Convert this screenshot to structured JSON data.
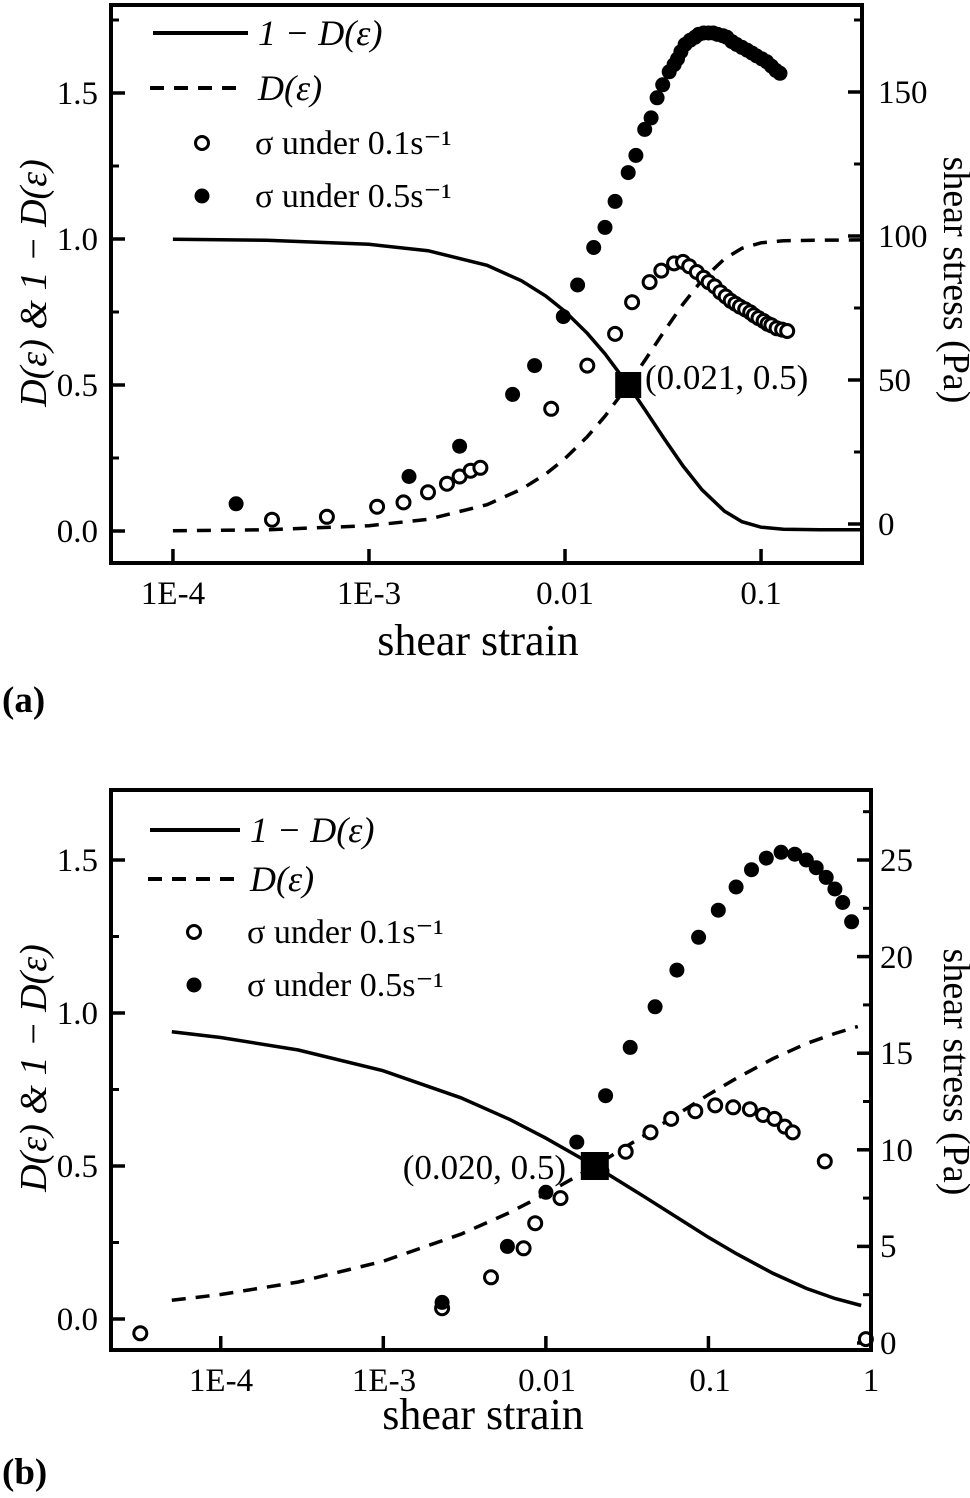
{
  "figure": {
    "panel_a_label": "(a)",
    "panel_b_label": "(b)",
    "background": "#ffffff",
    "ink": "#000000"
  },
  "chart_data": [
    {
      "id": "a",
      "type": "line+scatter",
      "x_axis": {
        "label": "shear strain",
        "scale": "log",
        "xlim": [
          4.8e-05,
          0.33
        ],
        "ticks": [
          {
            "v": 0.0001,
            "label": "1E-4"
          },
          {
            "v": 0.001,
            "label": "1E-3"
          },
          {
            "v": 0.01,
            "label": "0.01"
          },
          {
            "v": 0.1,
            "label": "0.1"
          }
        ],
        "minor_ticks": []
      },
      "left_axis": {
        "label": "D(ε) & 1 − D(ε)",
        "ylim": [
          -0.11,
          1.8
        ],
        "ticks": [
          {
            "v": 0.0,
            "label": "0.0"
          },
          {
            "v": 0.5,
            "label": "0.5"
          },
          {
            "v": 1.0,
            "label": "1.0"
          },
          {
            "v": 1.5,
            "label": "1.5"
          }
        ],
        "minor_ticks": [
          0.25,
          0.75,
          1.25,
          1.75
        ]
      },
      "right_axis": {
        "label": "shear stress (Pa)",
        "ylim": [
          -13,
          180
        ],
        "ticks": [
          {
            "v": 0,
            "label": "0"
          },
          {
            "v": 50,
            "label": "50"
          },
          {
            "v": 100,
            "label": "100"
          },
          {
            "v": 150,
            "label": "150"
          }
        ],
        "minor_ticks": [
          25,
          75,
          125,
          175
        ]
      },
      "legend": [
        {
          "marker": "solid-line",
          "label": "1 − D(ε)"
        },
        {
          "marker": "dashed-line",
          "label": "D(ε)"
        },
        {
          "marker": "open-circle",
          "label": "σ  under  0.1s⁻¹"
        },
        {
          "marker": "filled-circle",
          "label": "σ  under  0.5s⁻¹"
        }
      ],
      "annotation": {
        "text": "(0.021, 0.5)",
        "x": 0.021,
        "y": 0.5
      },
      "series": {
        "one_minus_D": {
          "name": "1 − D(ε)",
          "axis": "left",
          "style": "solid",
          "points": [
            [
              0.0001,
              0.999
            ],
            [
              0.0003,
              0.996
            ],
            [
              0.001,
              0.982
            ],
            [
              0.002,
              0.96
            ],
            [
              0.004,
              0.91
            ],
            [
              0.006,
              0.857
            ],
            [
              0.008,
              0.804
            ],
            [
              0.01,
              0.752
            ],
            [
              0.013,
              0.677
            ],
            [
              0.016,
              0.607
            ],
            [
              0.021,
              0.5
            ],
            [
              0.026,
              0.408
            ],
            [
              0.032,
              0.317
            ],
            [
              0.04,
              0.223
            ],
            [
              0.05,
              0.141
            ],
            [
              0.065,
              0.068
            ],
            [
              0.08,
              0.032
            ],
            [
              0.1,
              0.013
            ],
            [
              0.13,
              0.006
            ],
            [
              0.2,
              0.004
            ],
            [
              0.327,
              0.004
            ]
          ]
        },
        "D": {
          "name": "D(ε)",
          "axis": "left",
          "style": "dashed",
          "points": [
            [
              0.0001,
              0.001
            ],
            [
              0.0003,
              0.004
            ],
            [
              0.001,
              0.018
            ],
            [
              0.002,
              0.04
            ],
            [
              0.004,
              0.09
            ],
            [
              0.006,
              0.143
            ],
            [
              0.008,
              0.196
            ],
            [
              0.01,
              0.248
            ],
            [
              0.013,
              0.323
            ],
            [
              0.016,
              0.393
            ],
            [
              0.021,
              0.5
            ],
            [
              0.026,
              0.592
            ],
            [
              0.032,
              0.683
            ],
            [
              0.04,
              0.777
            ],
            [
              0.05,
              0.859
            ],
            [
              0.065,
              0.932
            ],
            [
              0.08,
              0.968
            ],
            [
              0.1,
              0.987
            ],
            [
              0.13,
              0.994
            ],
            [
              0.2,
              0.996
            ],
            [
              0.327,
              0.997
            ]
          ]
        },
        "sigma_0p1": {
          "name": "σ under 0.1s⁻¹",
          "axis": "right",
          "marker": "open",
          "points": [
            [
              0.00032,
              1.5
            ],
            [
              0.00061,
              2.5
            ],
            [
              0.0011,
              6
            ],
            [
              0.0015,
              7.5
            ],
            [
              0.002,
              11
            ],
            [
              0.0025,
              14
            ],
            [
              0.0029,
              16.5
            ],
            [
              0.0033,
              18.5
            ],
            [
              0.0037,
              19.5
            ],
            [
              0.0085,
              40
            ],
            [
              0.013,
              55
            ],
            [
              0.018,
              66
            ],
            [
              0.022,
              77
            ],
            [
              0.027,
              84
            ],
            [
              0.031,
              88
            ],
            [
              0.036,
              90.5
            ],
            [
              0.04,
              91
            ],
            [
              0.043,
              89.5
            ],
            [
              0.047,
              87.5
            ],
            [
              0.051,
              85.5
            ],
            [
              0.054,
              84
            ],
            [
              0.058,
              82.5
            ],
            [
              0.062,
              80.5
            ],
            [
              0.066,
              79
            ],
            [
              0.07,
              77.5
            ],
            [
              0.074,
              76.5
            ],
            [
              0.078,
              75.5
            ],
            [
              0.083,
              74.5
            ],
            [
              0.088,
              73.5
            ],
            [
              0.092,
              72.5
            ],
            [
              0.097,
              71.5
            ],
            [
              0.103,
              70.5
            ],
            [
              0.108,
              69.5
            ],
            [
              0.113,
              69
            ],
            [
              0.12,
              68
            ],
            [
              0.128,
              67.5
            ],
            [
              0.136,
              67
            ]
          ]
        },
        "sigma_0p5": {
          "name": "σ under 0.5s⁻¹",
          "axis": "right",
          "marker": "filled",
          "points": [
            [
              0.00021,
              7
            ],
            [
              0.0016,
              16.5
            ],
            [
              0.0029,
              27
            ],
            [
              0.0054,
              45
            ],
            [
              0.007,
              55
            ],
            [
              0.0098,
              72
            ],
            [
              0.0116,
              83
            ],
            [
              0.014,
              96
            ],
            [
              0.016,
              103
            ],
            [
              0.018,
              112
            ],
            [
              0.021,
              122
            ],
            [
              0.023,
              128
            ],
            [
              0.0255,
              137
            ],
            [
              0.0275,
              141
            ],
            [
              0.0295,
              148
            ],
            [
              0.0315,
              152.5
            ],
            [
              0.034,
              157
            ],
            [
              0.036,
              159.5
            ],
            [
              0.0375,
              161.5
            ],
            [
              0.039,
              164
            ],
            [
              0.041,
              166.5
            ],
            [
              0.0435,
              168
            ],
            [
              0.046,
              169
            ],
            [
              0.048,
              170
            ],
            [
              0.051,
              170.5
            ],
            [
              0.054,
              170.5
            ],
            [
              0.057,
              170.5
            ],
            [
              0.06,
              170
            ],
            [
              0.064,
              169.5
            ],
            [
              0.067,
              169
            ],
            [
              0.071,
              167.5
            ],
            [
              0.075,
              166.5
            ],
            [
              0.08,
              165.5
            ],
            [
              0.085,
              164.5
            ],
            [
              0.09,
              163.5
            ],
            [
              0.095,
              162.5
            ],
            [
              0.101,
              161.5
            ],
            [
              0.107,
              160.5
            ],
            [
              0.113,
              159
            ],
            [
              0.119,
              157.5
            ],
            [
              0.125,
              156.5
            ]
          ]
        },
        "intersection": {
          "name": "(0.021, 0.5)",
          "axis": "left",
          "marker": "square",
          "points": [
            [
              0.021,
              0.5
            ]
          ]
        }
      }
    },
    {
      "id": "b",
      "type": "line+scatter",
      "x_axis": {
        "label": "shear strain",
        "scale": "log",
        "xlim": [
          2.1e-05,
          1.0
        ],
        "ticks": [
          {
            "v": 0.0001,
            "label": "1E-4"
          },
          {
            "v": 0.001,
            "label": "1E-3"
          },
          {
            "v": 0.01,
            "label": "0.01"
          },
          {
            "v": 0.1,
            "label": "0.1"
          },
          {
            "v": 1,
            "label": "1"
          }
        ],
        "minor_ticks": []
      },
      "left_axis": {
        "label": "D(ε) & 1 − D(ε)",
        "ylim": [
          -0.1,
          1.73
        ],
        "ticks": [
          {
            "v": 0.0,
            "label": "0.0"
          },
          {
            "v": 0.5,
            "label": "0.5"
          },
          {
            "v": 1.0,
            "label": "1.0"
          },
          {
            "v": 1.5,
            "label": "1.5"
          }
        ],
        "minor_ticks": [
          0.25,
          0.75,
          1.25
        ]
      },
      "right_axis": {
        "label": "shear stress (Pa)",
        "ylim": [
          -0.4,
          28.6
        ],
        "ticks": [
          {
            "v": 0,
            "label": "0"
          },
          {
            "v": 5,
            "label": "5"
          },
          {
            "v": 10,
            "label": "10"
          },
          {
            "v": 15,
            "label": "15"
          },
          {
            "v": 20,
            "label": "20"
          },
          {
            "v": 25,
            "label": "25"
          }
        ],
        "minor_ticks": [
          2.5,
          7.5,
          12.5,
          17.5,
          22.5,
          27.5
        ]
      },
      "legend": [
        {
          "marker": "solid-line",
          "label": "1 − D(ε)"
        },
        {
          "marker": "dashed-line",
          "label": "D(ε)"
        },
        {
          "marker": "open-circle",
          "label": "σ  under  0.1s⁻¹"
        },
        {
          "marker": "filled-circle",
          "label": "σ  under  0.5s⁻¹"
        }
      ],
      "annotation": {
        "text": "(0.020, 0.5)",
        "x": 0.02,
        "y": 0.5
      },
      "series": {
        "one_minus_D": {
          "name": "1 − D(ε)",
          "axis": "left",
          "style": "solid",
          "points": [
            [
              5e-05,
              0.939
            ],
            [
              0.0001,
              0.92
            ],
            [
              0.0003,
              0.879
            ],
            [
              0.001,
              0.811
            ],
            [
              0.003,
              0.723
            ],
            [
              0.006,
              0.652
            ],
            [
              0.01,
              0.591
            ],
            [
              0.02,
              0.5
            ],
            [
              0.04,
              0.401
            ],
            [
              0.07,
              0.319
            ],
            [
              0.1,
              0.267
            ],
            [
              0.15,
              0.212
            ],
            [
              0.25,
              0.149
            ],
            [
              0.4,
              0.1
            ],
            [
              0.6,
              0.067
            ],
            [
              0.87,
              0.044
            ]
          ]
        },
        "D": {
          "name": "D(ε)",
          "axis": "left",
          "style": "dashed",
          "points": [
            [
              5e-05,
              0.061
            ],
            [
              0.0001,
              0.08
            ],
            [
              0.0003,
              0.121
            ],
            [
              0.001,
              0.189
            ],
            [
              0.003,
              0.277
            ],
            [
              0.006,
              0.348
            ],
            [
              0.01,
              0.409
            ],
            [
              0.02,
              0.5
            ],
            [
              0.04,
              0.599
            ],
            [
              0.07,
              0.681
            ],
            [
              0.1,
              0.733
            ],
            [
              0.15,
              0.788
            ],
            [
              0.25,
              0.851
            ],
            [
              0.4,
              0.9
            ],
            [
              0.6,
              0.933
            ],
            [
              0.83,
              0.956
            ]
          ]
        },
        "sigma_0p1": {
          "name": "σ under 0.1s⁻¹",
          "axis": "right",
          "marker": "open",
          "points": [
            [
              3.2e-05,
              0.5
            ],
            [
              0.0023,
              1.8
            ],
            [
              0.0046,
              3.4
            ],
            [
              0.0073,
              4.9
            ],
            [
              0.0086,
              6.2
            ],
            [
              0.0123,
              7.5
            ],
            [
              0.022,
              8.9
            ],
            [
              0.031,
              9.9
            ],
            [
              0.044,
              10.9
            ],
            [
              0.059,
              11.6
            ],
            [
              0.083,
              12.0
            ],
            [
              0.11,
              12.3
            ],
            [
              0.142,
              12.2
            ],
            [
              0.18,
              12.1
            ],
            [
              0.217,
              11.8
            ],
            [
              0.255,
              11.6
            ],
            [
              0.295,
              11.2
            ],
            [
              0.33,
              10.9
            ],
            [
              0.52,
              9.4
            ],
            [
              0.93,
              0.2
            ]
          ]
        },
        "sigma_0p5": {
          "name": "σ under 0.5s⁻¹",
          "axis": "right",
          "marker": "filled",
          "points": [
            [
              0.0023,
              2.1
            ],
            [
              0.0058,
              5.0
            ],
            [
              0.01,
              7.8
            ],
            [
              0.0155,
              10.4
            ],
            [
              0.0233,
              12.8
            ],
            [
              0.033,
              15.3
            ],
            [
              0.047,
              17.4
            ],
            [
              0.064,
              19.3
            ],
            [
              0.087,
              21.0
            ],
            [
              0.115,
              22.4
            ],
            [
              0.148,
              23.6
            ],
            [
              0.184,
              24.5
            ],
            [
              0.227,
              25.1
            ],
            [
              0.28,
              25.4
            ],
            [
              0.34,
              25.3
            ],
            [
              0.4,
              25.0
            ],
            [
              0.46,
              24.6
            ],
            [
              0.53,
              24.1
            ],
            [
              0.6,
              23.5
            ],
            [
              0.67,
              22.8
            ],
            [
              0.76,
              21.8
            ]
          ]
        },
        "intersection": {
          "name": "(0.020, 0.5)",
          "axis": "left",
          "marker": "square",
          "points": [
            [
              0.02,
              0.5
            ]
          ]
        }
      }
    }
  ]
}
